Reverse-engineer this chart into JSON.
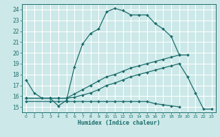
{
  "xlabel": "Humidex (Indice chaleur)",
  "ylabel": "",
  "xlim": [
    -0.5,
    23.5
  ],
  "ylim": [
    14.5,
    24.5
  ],
  "xticks": [
    0,
    1,
    2,
    3,
    4,
    5,
    6,
    7,
    8,
    9,
    10,
    11,
    12,
    13,
    14,
    15,
    16,
    17,
    18,
    19,
    20,
    21,
    22,
    23
  ],
  "yticks": [
    15,
    16,
    17,
    18,
    19,
    20,
    21,
    22,
    23,
    24
  ],
  "bg_color": "#cce8e8",
  "grid_color": "#ffffff",
  "line_color": "#1a6b6b",
  "curves": [
    {
      "x": [
        0,
        1,
        2,
        3,
        4,
        5,
        6,
        7,
        8,
        9,
        10,
        11,
        12,
        13,
        14,
        15,
        16,
        17,
        18,
        19
      ],
      "y": [
        17.5,
        16.3,
        15.8,
        15.8,
        15.1,
        15.6,
        18.7,
        20.8,
        21.8,
        22.2,
        23.8,
        24.1,
        23.9,
        23.5,
        23.5,
        23.5,
        22.7,
        22.2,
        21.5,
        19.8
      ]
    },
    {
      "x": [
        0,
        3,
        4,
        5,
        6,
        7,
        8,
        9,
        10,
        11,
        12,
        13,
        14,
        15,
        16,
        17,
        18,
        19,
        20,
        21,
        22,
        23
      ],
      "y": [
        15.8,
        15.8,
        15.8,
        15.8,
        15.9,
        16.1,
        16.3,
        16.6,
        17.0,
        17.2,
        17.5,
        17.8,
        18.0,
        18.2,
        18.4,
        18.6,
        18.8,
        19.0,
        17.8,
        16.3,
        14.8,
        14.8
      ]
    },
    {
      "x": [
        0,
        3,
        4,
        5,
        6,
        7,
        8,
        9,
        10,
        11,
        12,
        13,
        14,
        15,
        16,
        17,
        18,
        19
      ],
      "y": [
        15.5,
        15.5,
        15.5,
        15.5,
        15.5,
        15.5,
        15.5,
        15.5,
        15.5,
        15.5,
        15.5,
        15.5,
        15.5,
        15.5,
        15.3,
        15.2,
        15.1,
        15.0
      ]
    },
    {
      "x": [
        0,
        3,
        4,
        5,
        6,
        7,
        8,
        9,
        10,
        11,
        12,
        13,
        14,
        15,
        16,
        17,
        18,
        19,
        20
      ],
      "y": [
        15.8,
        15.8,
        15.8,
        15.8,
        16.2,
        16.6,
        17.0,
        17.4,
        17.8,
        18.0,
        18.3,
        18.6,
        18.8,
        19.0,
        19.2,
        19.4,
        19.6,
        19.8,
        19.8
      ]
    }
  ]
}
